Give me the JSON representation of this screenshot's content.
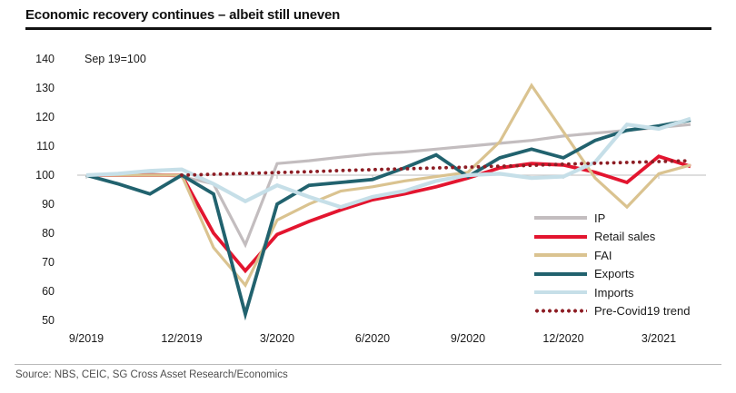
{
  "header": {
    "title": "Economic recovery continues – albeit still uneven"
  },
  "annotation": "Sep 19=100",
  "footer": {
    "source": "Source: NBS, CEIC, SG Cross Asset Research/Economics"
  },
  "colors": {
    "title_rule": "#111111",
    "gridline": "#c9c9c9",
    "source_text": "#4d4d4d",
    "ip": "#c3bdbf",
    "retail_sales": "#e3152f",
    "fai": "#dac390",
    "exports": "#21626e",
    "imports": "#c6dfe8",
    "pre_covid_trend": "#8d1d24"
  },
  "chart_data": {
    "type": "line",
    "title": "Economic recovery continues – albeit still uneven",
    "index_note": "Sep 19=100",
    "x": [
      "9/2019",
      "10/2019",
      "11/2019",
      "12/2019",
      "1/2020",
      "2/2020",
      "3/2020",
      "4/2020",
      "5/2020",
      "6/2020",
      "7/2020",
      "8/2020",
      "9/2020",
      "10/2020",
      "11/2020",
      "12/2020",
      "1/2021",
      "2/2021",
      "3/2021",
      "4/2021"
    ],
    "x_tick_labels": [
      "9/2019",
      "12/2019",
      "3/2020",
      "6/2020",
      "9/2020",
      "12/2020",
      "3/2021"
    ],
    "ylim": [
      50,
      140
    ],
    "yticks": [
      140,
      130,
      120,
      110,
      100,
      90,
      80,
      70,
      60,
      50
    ],
    "gridline_at": 100,
    "grid": "single horizontal axis line at 100 with quarter tick marks",
    "legend_position": "inside-right",
    "series": [
      {
        "name": "IP",
        "color": "#c3bdbf",
        "style": "solid",
        "width": 3.2,
        "values": [
          100,
          100,
          100.5,
          99.5,
          97,
          76,
          104,
          105,
          106.2,
          107.3,
          108,
          109,
          110,
          111,
          112,
          113.5,
          114.5,
          115.5,
          116.5,
          117.5
        ]
      },
      {
        "name": "Retail sales",
        "color": "#e3152f",
        "style": "solid",
        "width": 3.8,
        "values": [
          100,
          100,
          100,
          100,
          80,
          67,
          79.5,
          84,
          88,
          91.5,
          93.5,
          96,
          99,
          102.5,
          104,
          103.5,
          101,
          97.5,
          106.5,
          103
        ]
      },
      {
        "name": "FAI",
        "color": "#dac390",
        "style": "solid",
        "width": 3.2,
        "values": [
          100,
          100,
          100,
          100,
          75,
          62,
          84.5,
          90,
          94.5,
          96,
          98,
          99.5,
          101,
          111.5,
          131,
          115,
          99,
          89,
          100.5,
          103.5
        ]
      },
      {
        "name": "Exports",
        "color": "#21626e",
        "style": "solid",
        "width": 3.8,
        "values": [
          100,
          97,
          93.5,
          100,
          93.5,
          52,
          90,
          96.5,
          97.5,
          98.5,
          102.5,
          107,
          99.5,
          106,
          109,
          106,
          112,
          115.5,
          117,
          119
        ]
      },
      {
        "name": "Imports",
        "color": "#c6dfe8",
        "style": "solid",
        "width": 4.2,
        "values": [
          100,
          100.5,
          101.5,
          102,
          97,
          91,
          96.5,
          92.5,
          89,
          92.5,
          94.5,
          98,
          100,
          100.5,
          99,
          99.5,
          104.5,
          117.5,
          116,
          119.5
        ]
      },
      {
        "name": "Pre-Covid19 trend",
        "color": "#8d1d24",
        "style": "dotted",
        "width": 3.8,
        "values": [
          null,
          null,
          null,
          100,
          100.3,
          100.6,
          100.9,
          101.2,
          101.6,
          101.9,
          102.2,
          102.5,
          102.8,
          103.1,
          103.4,
          103.8,
          104.1,
          104.4,
          104.7,
          105
        ]
      }
    ]
  }
}
